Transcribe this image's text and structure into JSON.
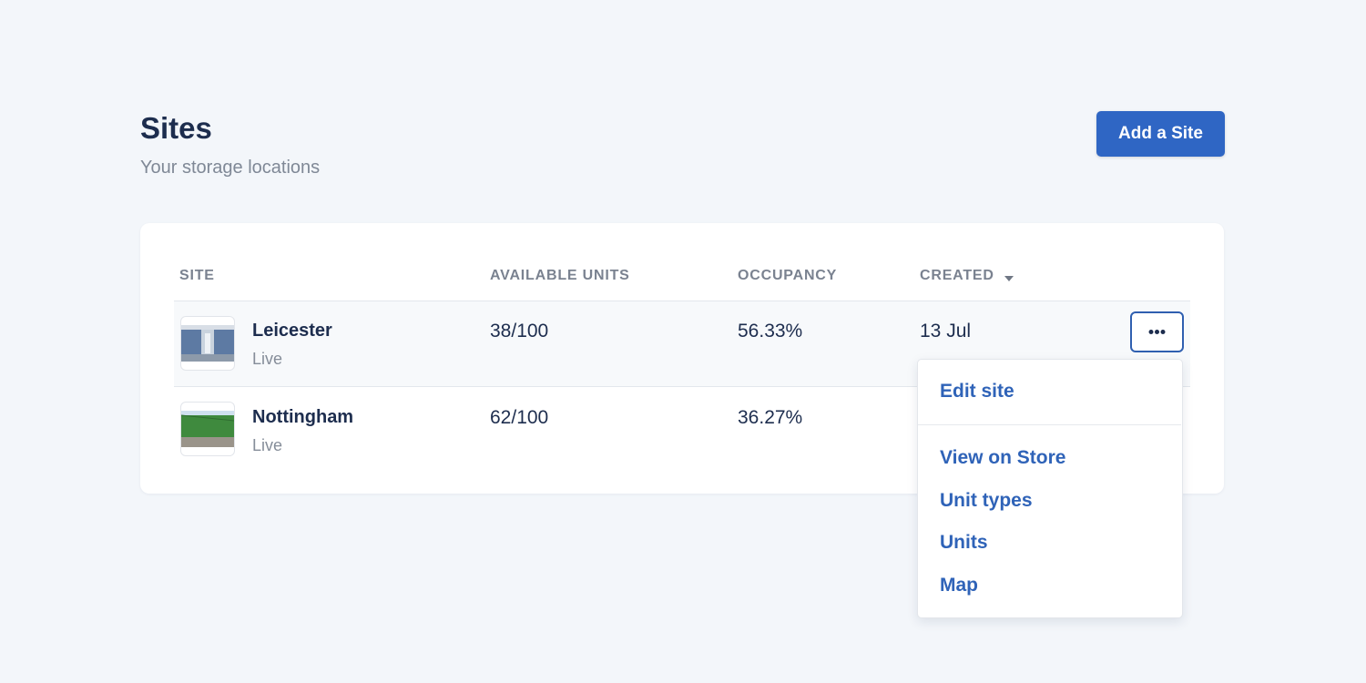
{
  "header": {
    "title": "Sites",
    "subtitle": "Your storage locations",
    "button": "Add a Site"
  },
  "table": {
    "columns": [
      "SITE",
      "AVAILABLE UNITS",
      "OCCUPANCY",
      "CREATED"
    ],
    "rows": [
      {
        "name": "Leicester",
        "status": "Live",
        "available": "38/100",
        "occupancy": "56.33%",
        "created": "13 Jul"
      },
      {
        "name": "Nottingham",
        "status": "Live",
        "available": "62/100",
        "occupancy": "36.27%"
      }
    ]
  },
  "menu": {
    "items": [
      "Edit site",
      "View on Store",
      "Unit types",
      "Units",
      "Map"
    ]
  }
}
